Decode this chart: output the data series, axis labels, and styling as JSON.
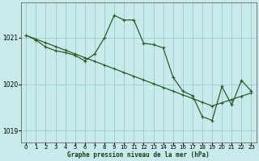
{
  "background_color": "#c8eaea",
  "plot_bg_color": "#c8eaea",
  "grid_color": "#99cccc",
  "line_color": "#2d5a2d",
  "title": "Graphe pression niveau de la mer (hPa)",
  "ylim": [
    1018.75,
    1021.75
  ],
  "yticks": [
    1019,
    1020,
    1021
  ],
  "xlim": [
    -0.5,
    23.5
  ],
  "xticks": [
    0,
    1,
    2,
    3,
    4,
    5,
    6,
    7,
    8,
    9,
    10,
    11,
    12,
    13,
    14,
    15,
    16,
    17,
    18,
    19,
    20,
    21,
    22,
    23
  ],
  "series1_x": [
    0,
    1,
    2,
    3,
    4,
    5,
    6,
    7,
    8,
    9,
    10,
    11,
    12,
    13,
    14,
    15,
    16,
    17,
    18,
    19,
    20,
    21,
    22,
    23
  ],
  "series1_y": [
    1021.05,
    1020.97,
    1020.89,
    1020.81,
    1020.73,
    1020.65,
    1020.57,
    1020.49,
    1020.41,
    1020.33,
    1020.25,
    1020.17,
    1020.09,
    1020.01,
    1019.93,
    1019.85,
    1019.77,
    1019.69,
    1019.61,
    1019.53,
    1019.6,
    1019.67,
    1019.74,
    1019.81
  ],
  "series2_x": [
    0,
    1,
    2,
    3,
    4,
    5,
    6,
    7,
    8,
    9,
    10,
    11,
    12,
    13,
    14,
    15,
    16,
    17,
    18,
    19,
    20,
    21,
    22,
    23
  ],
  "series2_y": [
    1021.05,
    1020.95,
    1020.8,
    1020.72,
    1020.68,
    1020.62,
    1020.5,
    1020.65,
    1021.0,
    1021.48,
    1021.38,
    1021.38,
    1020.88,
    1020.85,
    1020.78,
    1020.15,
    1019.85,
    1019.75,
    1019.3,
    1019.22,
    1019.95,
    1019.55,
    1020.08,
    1019.85
  ]
}
